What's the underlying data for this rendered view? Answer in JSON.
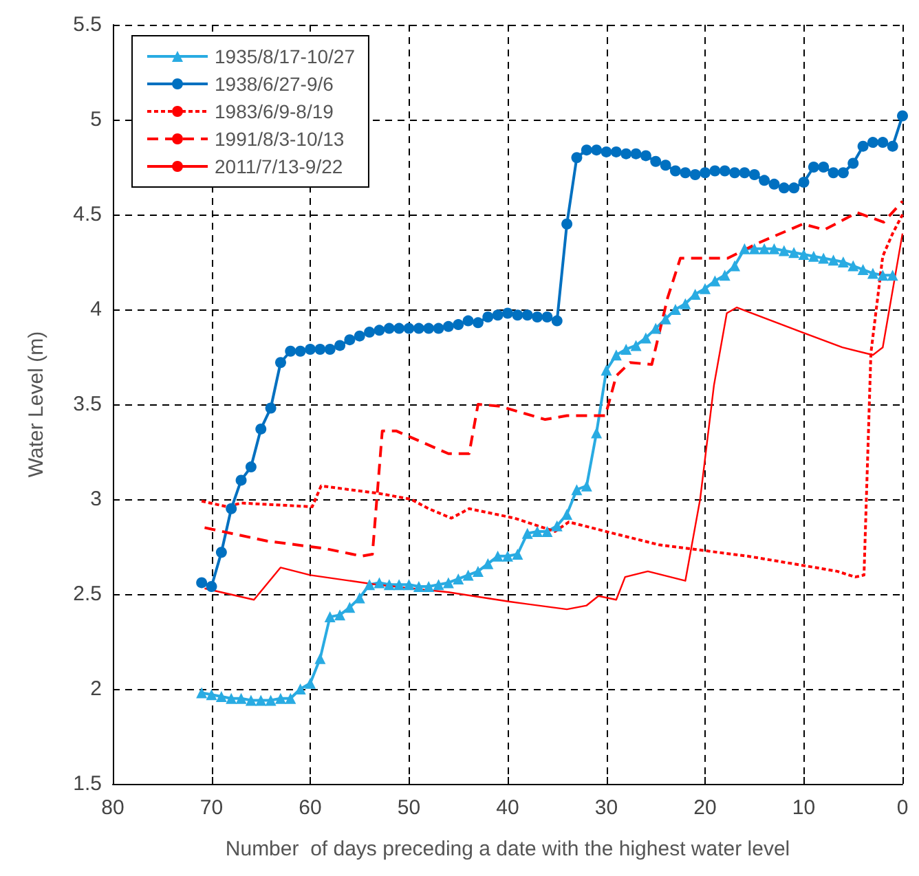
{
  "chart_data": {
    "type": "line",
    "xlabel": "Number  of days preceding a date with the highest water level",
    "ylabel": "Water Level (m)",
    "xlim": [
      80,
      0
    ],
    "xticks": [
      80,
      70,
      60,
      50,
      40,
      30,
      20,
      10,
      0
    ],
    "ylim": [
      1.5,
      5.5
    ],
    "yticks": [
      1.5,
      2,
      2.5,
      3,
      3.5,
      4,
      4.5,
      5,
      5.5
    ],
    "grid": true,
    "legend": "top left",
    "series": [
      {
        "name": "1935/8/17-10/27",
        "color": "#29abe2",
        "marker": "triangle",
        "line_style": "solid",
        "x": [
          71,
          70,
          69,
          68,
          67,
          66,
          65,
          64,
          63,
          62,
          61,
          60,
          59,
          58,
          57,
          56,
          55,
          54,
          53,
          52,
          51,
          50,
          49,
          48,
          47,
          46,
          45,
          44,
          43,
          42,
          41,
          40,
          39,
          38,
          37,
          36,
          35,
          34,
          33,
          32,
          31,
          30,
          29,
          28,
          27,
          26,
          25,
          24,
          23,
          22,
          21,
          20,
          19,
          18,
          17,
          16,
          15,
          14,
          13,
          12,
          11,
          10,
          9,
          8,
          7,
          6,
          5,
          4,
          3,
          2,
          1
        ],
        "values": [
          1.98,
          1.97,
          1.96,
          1.95,
          1.95,
          1.94,
          1.94,
          1.94,
          1.95,
          1.95,
          2.0,
          2.03,
          2.16,
          2.38,
          2.39,
          2.43,
          2.48,
          2.55,
          2.56,
          2.55,
          2.55,
          2.55,
          2.54,
          2.54,
          2.55,
          2.56,
          2.58,
          2.6,
          2.62,
          2.66,
          2.7,
          2.7,
          2.71,
          2.82,
          2.83,
          2.83,
          2.86,
          2.92,
          3.05,
          3.07,
          3.35,
          3.68,
          3.76,
          3.79,
          3.81,
          3.85,
          3.9,
          3.95,
          4.0,
          4.03,
          4.08,
          4.11,
          4.15,
          4.18,
          4.23,
          4.32,
          4.32,
          4.32,
          4.32,
          4.31,
          4.3,
          4.29,
          4.28,
          4.27,
          4.26,
          4.25,
          4.23,
          4.21,
          4.19,
          4.18,
          4.18
        ]
      },
      {
        "name": "1938/6/27-9/6",
        "color": "#0070c0",
        "marker": "circle",
        "line_style": "solid",
        "x": [
          71,
          70,
          69,
          68,
          67,
          66,
          65,
          64,
          63,
          62,
          61,
          60,
          59,
          58,
          57,
          56,
          55,
          54,
          53,
          52,
          51,
          50,
          49,
          48,
          47,
          46,
          45,
          44,
          43,
          42,
          41,
          40,
          39,
          38,
          37,
          36,
          35,
          34,
          33,
          32,
          31,
          30,
          29,
          28,
          27,
          26,
          25,
          24,
          23,
          22,
          21,
          20,
          19,
          18,
          17,
          16,
          15,
          14,
          13,
          12,
          11,
          10,
          9,
          8,
          7,
          6,
          5,
          4,
          3,
          2,
          1,
          0
        ],
        "values": [
          2.56,
          2.54,
          2.72,
          2.95,
          3.1,
          3.17,
          3.37,
          3.48,
          3.72,
          3.78,
          3.78,
          3.79,
          3.79,
          3.79,
          3.81,
          3.84,
          3.86,
          3.88,
          3.89,
          3.9,
          3.9,
          3.9,
          3.9,
          3.9,
          3.9,
          3.91,
          3.92,
          3.94,
          3.93,
          3.96,
          3.97,
          3.98,
          3.97,
          3.97,
          3.96,
          3.96,
          3.94,
          4.45,
          4.8,
          4.84,
          4.84,
          4.83,
          4.83,
          4.82,
          4.82,
          4.81,
          4.78,
          4.76,
          4.73,
          4.72,
          4.71,
          4.72,
          4.73,
          4.73,
          4.72,
          4.72,
          4.71,
          4.68,
          4.66,
          4.64,
          4.64,
          4.67,
          4.75,
          4.75,
          4.72,
          4.72,
          4.77,
          4.86,
          4.88,
          4.88,
          4.86,
          5.02
        ]
      },
      {
        "name": "1983/6/9-8/19",
        "color": "#ff0000",
        "marker": "none",
        "line_style": "dotted",
        "x": [
          71,
          68.4,
          67,
          59.8,
          58.9,
          53,
          49.8,
          48,
          45.7,
          43.9,
          39.3,
          35.2,
          33.8,
          29.3,
          24.7,
          20.2,
          15.7,
          11.1,
          6.6,
          4.8,
          3.9,
          3.2,
          2,
          1,
          0
        ],
        "values": [
          2.99,
          2.96,
          2.98,
          2.96,
          3.07,
          3.03,
          3.0,
          2.95,
          2.9,
          2.95,
          2.9,
          2.83,
          2.88,
          2.82,
          2.76,
          2.73,
          2.7,
          2.66,
          2.62,
          2.59,
          2.6,
          3.77,
          4.28,
          4.4,
          4.5
        ]
      },
      {
        "name": "1991/8/3-10/13",
        "color": "#ff0000",
        "marker": "none",
        "line_style": "dashed",
        "x": [
          70.7,
          64.4,
          58.5,
          54.8,
          53.7,
          52.7,
          51.3,
          46,
          43.9,
          43,
          40.8,
          36.2,
          34,
          30.1,
          29,
          27.6,
          25.4,
          23.8,
          22.5,
          17.7,
          14.6,
          10.1,
          7.9,
          4.6,
          1.9,
          0
        ],
        "values": [
          2.85,
          2.78,
          2.74,
          2.7,
          2.71,
          3.36,
          3.36,
          3.24,
          3.24,
          3.5,
          3.49,
          3.42,
          3.44,
          3.44,
          3.65,
          3.72,
          3.71,
          4.06,
          4.27,
          4.27,
          4.35,
          4.45,
          4.42,
          4.51,
          4.46,
          4.57
        ]
      },
      {
        "name": "2011/7/13-9/22",
        "color": "#ff0000",
        "marker": "none",
        "line_style": "solid",
        "x": [
          70.7,
          65.7,
          63,
          60,
          53.3,
          46,
          39.8,
          34,
          32,
          30.8,
          29,
          28.1,
          25.8,
          22,
          20.5,
          19.1,
          17.8,
          16.8,
          10.2,
          6.1,
          3,
          2,
          0
        ],
        "values": [
          2.53,
          2.47,
          2.64,
          2.6,
          2.55,
          2.51,
          2.46,
          2.42,
          2.44,
          2.49,
          2.47,
          2.59,
          2.62,
          2.57,
          3.0,
          3.6,
          3.98,
          4.01,
          3.88,
          3.8,
          3.76,
          3.8,
          4.4
        ]
      }
    ]
  }
}
